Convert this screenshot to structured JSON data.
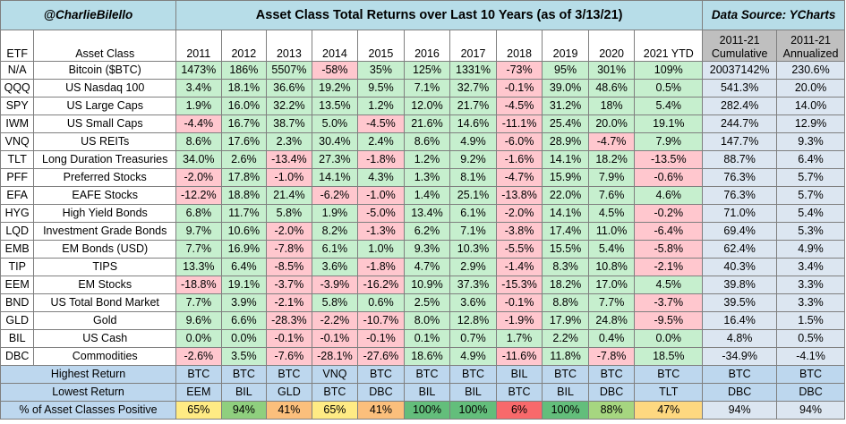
{
  "header": {
    "author": "@CharlieBilello",
    "title": "Asset Class Total Returns over Last 10 Years (as of 3/13/21)",
    "source": "Data Source: YCharts"
  },
  "columns": {
    "etf": "ETF",
    "asset": "Asset Class",
    "years": [
      "2011",
      "2012",
      "2013",
      "2014",
      "2015",
      "2016",
      "2017",
      "2018",
      "2019",
      "2020",
      "2021 YTD"
    ],
    "cumulative": [
      "2011-21",
      "Cumulative"
    ],
    "annualized": [
      "2011-21",
      "Annualized"
    ]
  },
  "chart_data": {
    "type": "table",
    "title": "Asset Class Total Returns over Last 10 Years (as of 3/13/21)",
    "rows": [
      {
        "etf": "N/A",
        "asset": "Bitcoin ($BTC)",
        "values": [
          "1473%",
          "186%",
          "5507%",
          "-58%",
          "35%",
          "125%",
          "1331%",
          "-73%",
          "95%",
          "301%",
          "109%"
        ],
        "cumulative": "20037142%",
        "annualized": "230.6%"
      },
      {
        "etf": "QQQ",
        "asset": "US Nasdaq 100",
        "values": [
          "3.4%",
          "18.1%",
          "36.6%",
          "19.2%",
          "9.5%",
          "7.1%",
          "32.7%",
          "-0.1%",
          "39.0%",
          "48.6%",
          "0.5%"
        ],
        "cumulative": "541.3%",
        "annualized": "20.0%"
      },
      {
        "etf": "SPY",
        "asset": "US Large Caps",
        "values": [
          "1.9%",
          "16.0%",
          "32.2%",
          "13.5%",
          "1.2%",
          "12.0%",
          "21.7%",
          "-4.5%",
          "31.2%",
          "18%",
          "5.4%"
        ],
        "cumulative": "282.4%",
        "annualized": "14.0%"
      },
      {
        "etf": "IWM",
        "asset": "US Small Caps",
        "values": [
          "-4.4%",
          "16.7%",
          "38.7%",
          "5.0%",
          "-4.5%",
          "21.6%",
          "14.6%",
          "-11.1%",
          "25.4%",
          "20.0%",
          "19.1%"
        ],
        "cumulative": "244.7%",
        "annualized": "12.9%"
      },
      {
        "etf": "VNQ",
        "asset": "US REITs",
        "values": [
          "8.6%",
          "17.6%",
          "2.3%",
          "30.4%",
          "2.4%",
          "8.6%",
          "4.9%",
          "-6.0%",
          "28.9%",
          "-4.7%",
          "7.9%"
        ],
        "cumulative": "147.7%",
        "annualized": "9.3%"
      },
      {
        "etf": "TLT",
        "asset": "Long Duration Treasuries",
        "values": [
          "34.0%",
          "2.6%",
          "-13.4%",
          "27.3%",
          "-1.8%",
          "1.2%",
          "9.2%",
          "-1.6%",
          "14.1%",
          "18.2%",
          "-13.5%"
        ],
        "cumulative": "88.7%",
        "annualized": "6.4%"
      },
      {
        "etf": "PFF",
        "asset": "Preferred Stocks",
        "values": [
          "-2.0%",
          "17.8%",
          "-1.0%",
          "14.1%",
          "4.3%",
          "1.3%",
          "8.1%",
          "-4.7%",
          "15.9%",
          "7.9%",
          "-0.6%"
        ],
        "cumulative": "76.3%",
        "annualized": "5.7%"
      },
      {
        "etf": "EFA",
        "asset": "EAFE Stocks",
        "values": [
          "-12.2%",
          "18.8%",
          "21.4%",
          "-6.2%",
          "-1.0%",
          "1.4%",
          "25.1%",
          "-13.8%",
          "22.0%",
          "7.6%",
          "4.6%"
        ],
        "cumulative": "76.3%",
        "annualized": "5.7%"
      },
      {
        "etf": "HYG",
        "asset": "High Yield Bonds",
        "values": [
          "6.8%",
          "11.7%",
          "5.8%",
          "1.9%",
          "-5.0%",
          "13.4%",
          "6.1%",
          "-2.0%",
          "14.1%",
          "4.5%",
          "-0.2%"
        ],
        "cumulative": "71.0%",
        "annualized": "5.4%"
      },
      {
        "etf": "LQD",
        "asset": "Investment Grade Bonds",
        "values": [
          "9.7%",
          "10.6%",
          "-2.0%",
          "8.2%",
          "-1.3%",
          "6.2%",
          "7.1%",
          "-3.8%",
          "17.4%",
          "11.0%",
          "-6.4%"
        ],
        "cumulative": "69.4%",
        "annualized": "5.3%"
      },
      {
        "etf": "EMB",
        "asset": "EM Bonds (USD)",
        "values": [
          "7.7%",
          "16.9%",
          "-7.8%",
          "6.1%",
          "1.0%",
          "9.3%",
          "10.3%",
          "-5.5%",
          "15.5%",
          "5.4%",
          "-5.8%"
        ],
        "cumulative": "62.4%",
        "annualized": "4.9%"
      },
      {
        "etf": "TIP",
        "asset": "TIPS",
        "values": [
          "13.3%",
          "6.4%",
          "-8.5%",
          "3.6%",
          "-1.8%",
          "4.7%",
          "2.9%",
          "-1.4%",
          "8.3%",
          "10.8%",
          "-2.1%"
        ],
        "cumulative": "40.3%",
        "annualized": "3.4%"
      },
      {
        "etf": "EEM",
        "asset": "EM Stocks",
        "values": [
          "-18.8%",
          "19.1%",
          "-3.7%",
          "-3.9%",
          "-16.2%",
          "10.9%",
          "37.3%",
          "-15.3%",
          "18.2%",
          "17.0%",
          "4.5%"
        ],
        "cumulative": "39.8%",
        "annualized": "3.3%"
      },
      {
        "etf": "BND",
        "asset": "US Total Bond Market",
        "values": [
          "7.7%",
          "3.9%",
          "-2.1%",
          "5.8%",
          "0.6%",
          "2.5%",
          "3.6%",
          "-0.1%",
          "8.8%",
          "7.7%",
          "-3.7%"
        ],
        "cumulative": "39.5%",
        "annualized": "3.3%"
      },
      {
        "etf": "GLD",
        "asset": "Gold",
        "values": [
          "9.6%",
          "6.6%",
          "-28.3%",
          "-2.2%",
          "-10.7%",
          "8.0%",
          "12.8%",
          "-1.9%",
          "17.9%",
          "24.8%",
          "-9.5%"
        ],
        "cumulative": "16.4%",
        "annualized": "1.5%"
      },
      {
        "etf": "BIL",
        "asset": "US Cash",
        "values": [
          "0.0%",
          "0.0%",
          "-0.1%",
          "-0.1%",
          "-0.1%",
          "0.1%",
          "0.7%",
          "1.7%",
          "2.2%",
          "0.4%",
          "0.0%"
        ],
        "cumulative": "4.8%",
        "annualized": "0.5%"
      },
      {
        "etf": "DBC",
        "asset": "Commodities",
        "values": [
          "-2.6%",
          "3.5%",
          "-7.6%",
          "-28.1%",
          "-27.6%",
          "18.6%",
          "4.9%",
          "-11.6%",
          "11.8%",
          "-7.8%",
          "18.5%"
        ],
        "cumulative": "-34.9%",
        "annualized": "-4.1%"
      }
    ],
    "summary": {
      "highest_label": "Highest Return",
      "highest": [
        "BTC",
        "BTC",
        "BTC",
        "VNQ",
        "BTC",
        "BTC",
        "BTC",
        "BIL",
        "BTC",
        "BTC",
        "BTC",
        "BTC",
        "BTC"
      ],
      "lowest_label": "Lowest Return",
      "lowest": [
        "EEM",
        "BIL",
        "GLD",
        "BTC",
        "DBC",
        "BIL",
        "BIL",
        "BTC",
        "BIL",
        "DBC",
        "TLT",
        "DBC",
        "DBC"
      ],
      "positive_label": "% of Asset Classes Positive",
      "positive": [
        "65%",
        "94%",
        "41%",
        "65%",
        "41%",
        "100%",
        "100%",
        "6%",
        "100%",
        "88%",
        "47%",
        "94%",
        "94%"
      ],
      "positive_colors": [
        "#ffeb84",
        "#8fcf7e",
        "#fbbf7c",
        "#ffeb84",
        "#fbbf7c",
        "#63be7b",
        "#63be7b",
        "#f8696b",
        "#63be7b",
        "#a6d680",
        "#fed880",
        "#dce6f1",
        "#dce6f1"
      ]
    }
  },
  "colors": {
    "positive_cell": "#c6efce",
    "negative_cell": "#ffc7ce",
    "banner": "#b7dde8",
    "summary_header": "#bfbfbf",
    "summary_cell": "#dce6f1",
    "footer": "#bdd7ee"
  }
}
